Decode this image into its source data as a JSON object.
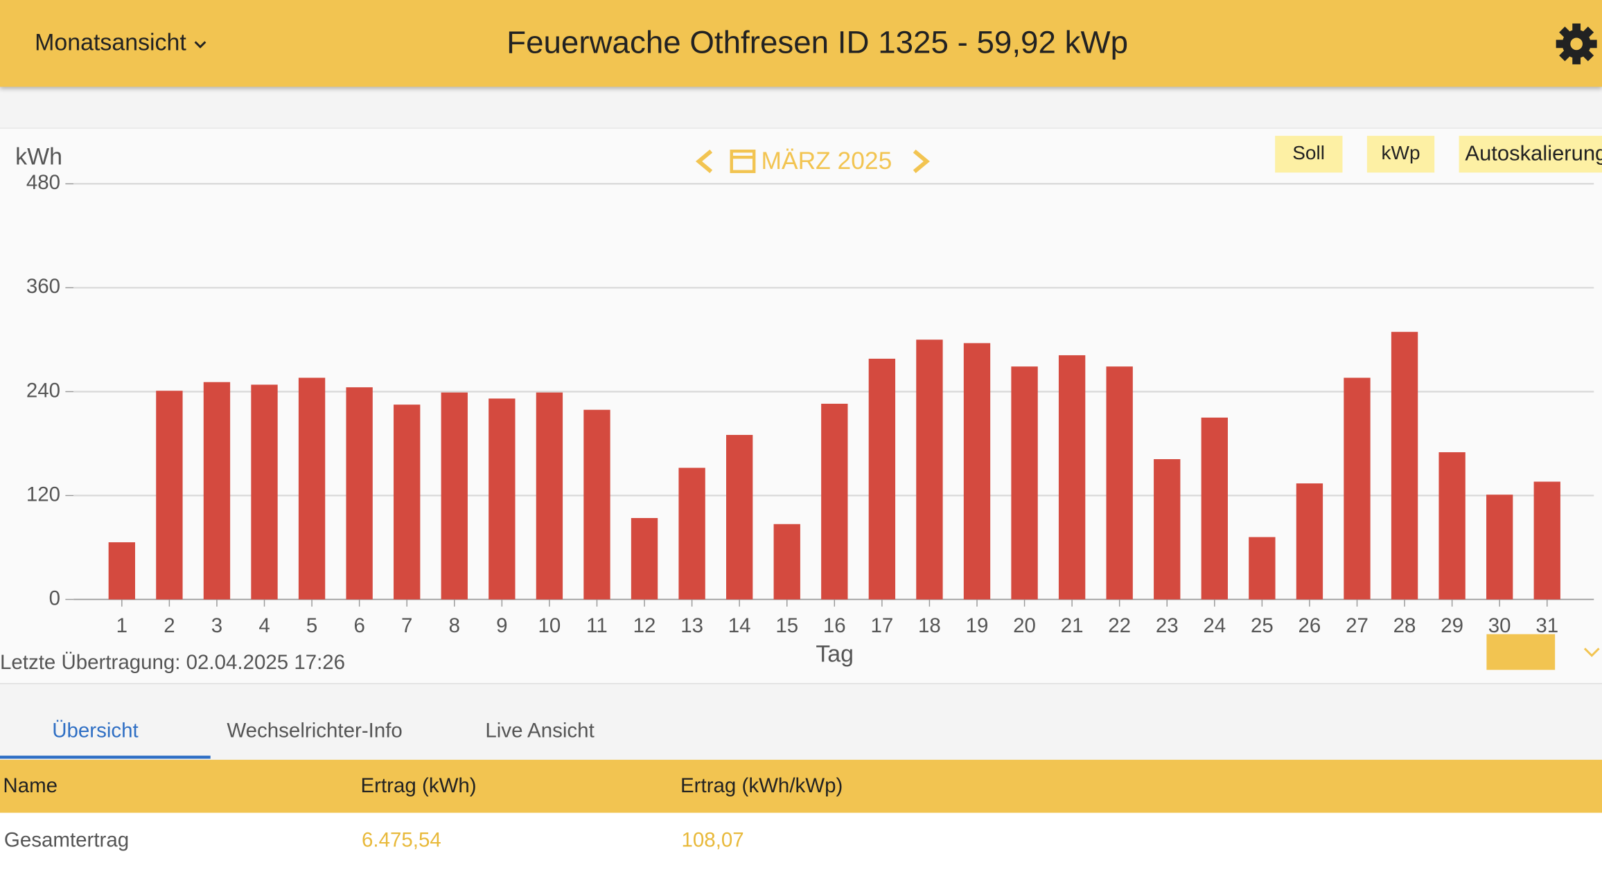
{
  "header": {
    "view": "Monatsansicht",
    "title": "Feuerwache Othfresen ID 1325 - 59,92 kWp"
  },
  "buttons": [
    "Soll",
    "kWp",
    "Autoskalierung"
  ],
  "chart_data": {
    "type": "bar",
    "title": "MÄRZ 2025",
    "y_label": "kWh",
    "x_label": "Tag",
    "categories": [
      "1",
      "2",
      "3",
      "4",
      "5",
      "6",
      "7",
      "8",
      "9",
      "10",
      "11",
      "12",
      "13",
      "14",
      "15",
      "16",
      "17",
      "18",
      "19",
      "20",
      "21",
      "22",
      "23",
      "24",
      "25",
      "26",
      "27",
      "28",
      "29",
      "30",
      "31"
    ],
    "values": [
      66,
      241,
      251,
      248,
      256,
      245,
      225,
      239,
      232,
      239,
      219,
      94,
      152,
      190,
      87,
      226,
      278,
      300,
      296,
      269,
      282,
      269,
      162,
      210,
      72,
      134,
      256,
      309,
      170,
      121,
      136
    ],
    "color": "#d44a3f",
    "ylim": [
      0,
      480
    ],
    "yticks": [
      0,
      120,
      240,
      360,
      480
    ],
    "grid": true
  },
  "last_transfer": "Letzte Übertragung: 02.04.2025 17:26",
  "tabs": [
    "Übersicht",
    "Wechselrichter-Info",
    "Live Ansicht"
  ],
  "table": {
    "header": [
      "Name",
      "Ertrag (kWh)",
      "Ertrag (kWh/kWp)"
    ],
    "rows": [
      [
        "Gesamtertrag",
        "6.475,54",
        "108,07"
      ]
    ]
  }
}
